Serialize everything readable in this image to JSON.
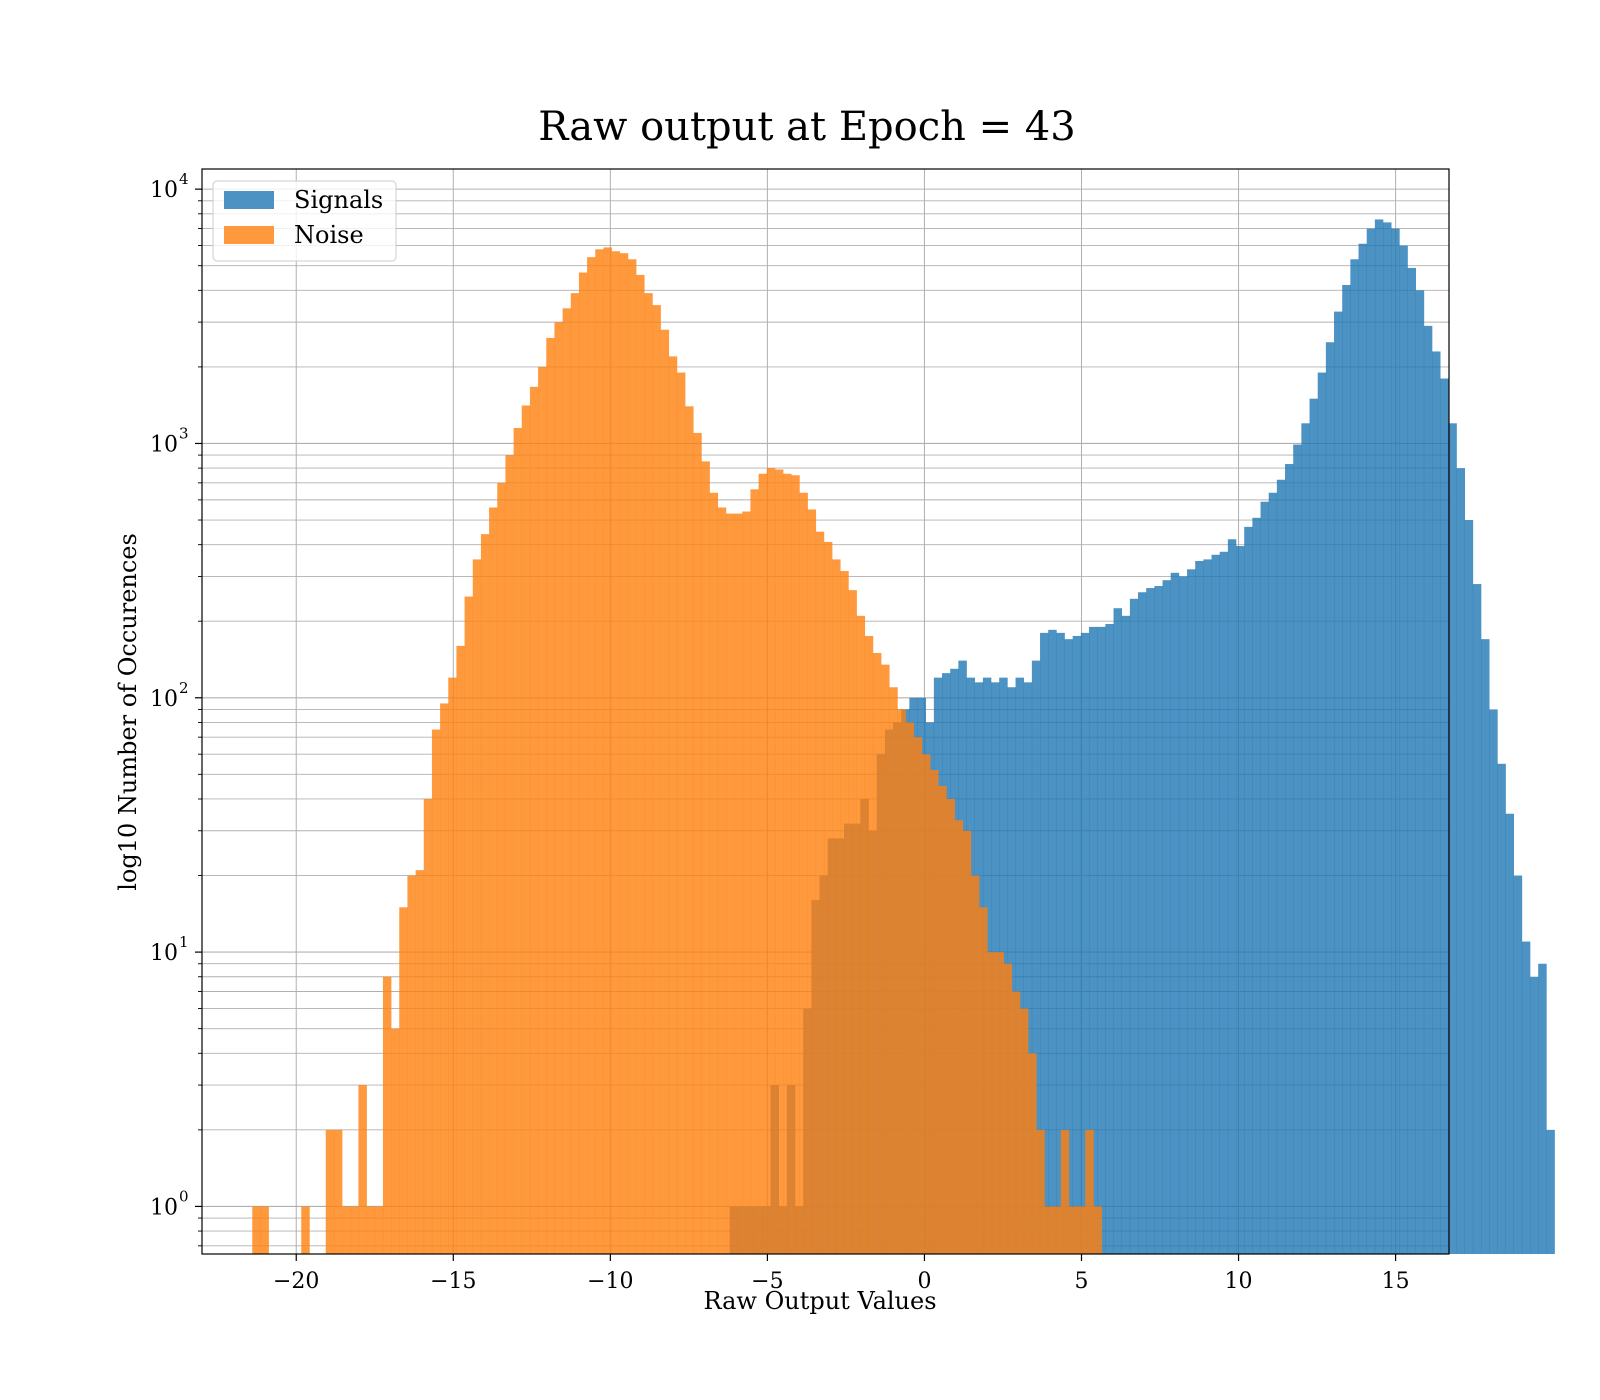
{
  "chart_data": {
    "type": "bar",
    "subtype": "histogram",
    "title": "Raw output at Epoch = 43",
    "xlabel": "Raw Output Values",
    "ylabel": "log10 Number of Occurences",
    "yscale": "log",
    "xlim": [
      -23.0,
      16.7
    ],
    "ylim": [
      0.65,
      12000
    ],
    "x_ticks": [
      -20,
      -15,
      -10,
      -5,
      0,
      5,
      10,
      15
    ],
    "x_tick_labels": [
      "−20",
      "−15",
      "−10",
      "−5",
      "0",
      "5",
      "10",
      "15"
    ],
    "y_ticks": [
      1,
      10,
      100,
      1000,
      10000
    ],
    "y_tick_labels": [
      {
        "base": "10",
        "exp": "0"
      },
      {
        "base": "10",
        "exp": "1"
      },
      {
        "base": "10",
        "exp": "2"
      },
      {
        "base": "10",
        "exp": "3"
      },
      {
        "base": "10",
        "exp": "4"
      }
    ],
    "grid": true,
    "legend_position": "upper-left",
    "series": [
      {
        "name": "Signals",
        "color": "#1f77b4",
        "opacity": 0.8,
        "bin_start": -6.2,
        "bin_width": 0.26,
        "values": [
          1,
          1,
          1,
          1,
          1,
          3,
          1,
          3,
          1,
          6,
          16,
          20,
          28,
          28,
          32,
          32,
          40,
          30,
          60,
          75,
          80,
          90,
          100,
          100,
          80,
          120,
          125,
          130,
          140,
          120,
          115,
          120,
          115,
          120,
          110,
          120,
          115,
          140,
          180,
          185,
          180,
          170,
          175,
          180,
          190,
          190,
          195,
          225,
          210,
          245,
          260,
          270,
          275,
          290,
          310,
          300,
          320,
          345,
          350,
          365,
          375,
          420,
          395,
          470,
          510,
          590,
          640,
          720,
          830,
          990,
          1200,
          1500,
          1900,
          2500,
          3300,
          4200,
          5300,
          6100,
          7000,
          7600,
          7400,
          7000,
          6000,
          4900,
          4000,
          2900,
          2300,
          1800,
          1200,
          800,
          500,
          280,
          170,
          90,
          55,
          35,
          20,
          11,
          8,
          9,
          2
        ]
      },
      {
        "name": "Noise",
        "color": "#ff7f0e",
        "opacity": 0.8,
        "bin_start": -21.4,
        "bin_width": 0.26,
        "values": [
          1,
          1,
          0,
          0,
          0,
          0,
          1,
          0,
          0,
          2,
          2,
          1,
          1,
          3,
          1,
          1,
          8,
          5,
          15,
          20,
          21,
          40,
          75,
          95,
          120,
          160,
          250,
          350,
          440,
          560,
          700,
          900,
          1150,
          1410,
          1670,
          2000,
          2600,
          3000,
          3400,
          3900,
          4700,
          5400,
          5800,
          5900,
          5700,
          5600,
          5300,
          4600,
          3900,
          3500,
          2800,
          2200,
          1900,
          1400,
          1100,
          850,
          640,
          560,
          530,
          530,
          540,
          660,
          760,
          800,
          790,
          760,
          750,
          640,
          550,
          450,
          410,
          350,
          315,
          265,
          210,
          175,
          150,
          135,
          110,
          90,
          80,
          70,
          60,
          52,
          45,
          40,
          33,
          30,
          20,
          15,
          10,
          10,
          9,
          7,
          6,
          4,
          2,
          1,
          1,
          2,
          1,
          1,
          2,
          1
        ]
      }
    ]
  }
}
